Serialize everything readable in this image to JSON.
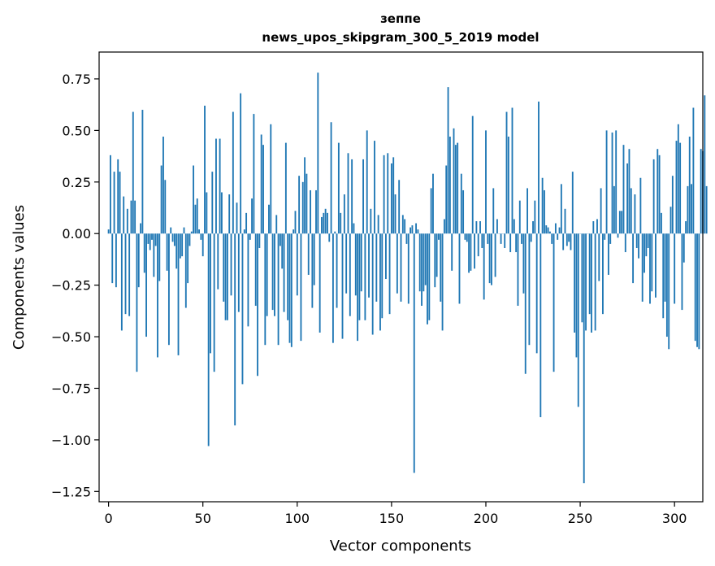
{
  "chart_data": {
    "type": "bar",
    "title_line1": "зеппе",
    "title_line2": "news_upos_skipgram_300_5_2019 model",
    "xlabel": "Vector components",
    "ylabel": "Components values",
    "xlim": [
      -5,
      315
    ],
    "ylim": [
      -1.3,
      0.88
    ],
    "x_ticks": [
      0,
      50,
      100,
      150,
      200,
      250,
      300
    ],
    "x_tick_labels": [
      "0",
      "50",
      "100",
      "150",
      "200",
      "250",
      "300"
    ],
    "y_ticks": [
      0.75,
      0.5,
      0.25,
      0.0,
      -0.25,
      -0.5,
      -0.75,
      -1.0,
      -1.25
    ],
    "y_tick_labels": [
      "0.75",
      "0.50",
      "0.25",
      "0.00",
      "−0.25",
      "−0.50",
      "−0.75",
      "−1.00",
      "−1.25"
    ],
    "bar_color": "#1f77b4",
    "values": [
      0.02,
      0.38,
      -0.24,
      0.3,
      -0.26,
      0.36,
      0.3,
      -0.47,
      0.18,
      -0.39,
      0.12,
      -0.4,
      0.16,
      0.59,
      0.16,
      -0.67,
      -0.26,
      0.05,
      0.6,
      -0.19,
      -0.5,
      -0.05,
      -0.08,
      -0.03,
      -0.21,
      -0.06,
      -0.6,
      -0.23,
      0.33,
      0.47,
      0.26,
      -0.18,
      -0.54,
      0.03,
      -0.04,
      -0.06,
      -0.17,
      -0.59,
      -0.12,
      -0.11,
      0.03,
      -0.36,
      -0.24,
      -0.06,
      0.01,
      0.33,
      0.14,
      0.17,
      0.02,
      -0.03,
      -0.11,
      0.62,
      0.2,
      -1.03,
      -0.58,
      0.3,
      -0.67,
      0.46,
      -0.27,
      0.46,
      0.2,
      -0.33,
      -0.42,
      -0.42,
      0.19,
      -0.3,
      0.59,
      -0.93,
      0.15,
      -0.38,
      0.68,
      -0.73,
      0.02,
      0.1,
      -0.45,
      -0.03,
      0.17,
      0.58,
      -0.35,
      -0.69,
      -0.07,
      0.48,
      0.43,
      -0.54,
      -0.4,
      0.14,
      0.53,
      -0.37,
      -0.4,
      0.09,
      -0.54,
      -0.06,
      -0.17,
      -0.38,
      0.44,
      -0.42,
      -0.53,
      -0.55,
      0.02,
      0.11,
      -0.3,
      0.28,
      -0.52,
      0.25,
      0.37,
      0.29,
      -0.2,
      0.21,
      -0.36,
      -0.25,
      0.21,
      0.78,
      -0.48,
      0.08,
      0.1,
      0.12,
      0.1,
      -0.04,
      0.54,
      -0.53,
      0.01,
      -0.36,
      0.44,
      0.1,
      -0.51,
      0.19,
      -0.29,
      0.39,
      -0.4,
      0.36,
      0.05,
      -0.3,
      -0.52,
      -0.42,
      -0.28,
      0.36,
      -0.42,
      0.5,
      -0.31,
      0.12,
      -0.49,
      0.45,
      -0.33,
      0.09,
      -0.47,
      -0.41,
      0.38,
      -0.22,
      0.39,
      -0.39,
      0.34,
      0.37,
      0.19,
      -0.29,
      0.26,
      -0.33,
      0.09,
      0.07,
      -0.05,
      -0.34,
      0.03,
      0.04,
      -1.16,
      0.05,
      0.02,
      -0.28,
      -0.35,
      -0.28,
      -0.25,
      -0.44,
      -0.42,
      0.22,
      0.29,
      -0.26,
      -0.21,
      -0.03,
      -0.33,
      -0.47,
      0.07,
      0.33,
      0.71,
      0.47,
      -0.18,
      0.51,
      0.43,
      0.44,
      -0.34,
      0.29,
      0.21,
      -0.03,
      -0.04,
      -0.19,
      -0.18,
      0.57,
      -0.17,
      0.06,
      -0.11,
      0.06,
      -0.07,
      -0.32,
      0.5,
      -0.05,
      -0.24,
      -0.25,
      0.22,
      -0.21,
      0.07,
      0.0,
      -0.05,
      0.0,
      -0.07,
      0.59,
      0.47,
      -0.09,
      0.61,
      0.07,
      -0.09,
      -0.35,
      0.16,
      -0.05,
      -0.29,
      -0.68,
      0.22,
      -0.54,
      -0.04,
      0.06,
      0.16,
      -0.58,
      0.64,
      -0.89,
      0.27,
      0.21,
      0.04,
      0.03,
      0.01,
      -0.05,
      -0.67,
      0.05,
      -0.03,
      0.03,
      0.24,
      -0.08,
      0.12,
      -0.06,
      -0.04,
      -0.08,
      0.3,
      -0.48,
      -0.6,
      -0.84,
      0.0,
      -0.43,
      -1.21,
      -0.47,
      0.0,
      -0.39,
      -0.48,
      0.06,
      -0.47,
      0.07,
      -0.23,
      0.22,
      -0.39,
      -0.03,
      0.5,
      -0.2,
      -0.05,
      0.49,
      0.23,
      0.5,
      -0.02,
      0.11,
      0.11,
      0.43,
      -0.09,
      0.34,
      0.41,
      0.22,
      -0.24,
      0.19,
      -0.07,
      -0.12,
      0.27,
      -0.33,
      -0.19,
      -0.11,
      -0.07,
      -0.34,
      -0.28,
      0.36,
      -0.31,
      0.41,
      0.38,
      0.1,
      -0.41,
      -0.33,
      -0.5,
      -0.56,
      0.13,
      0.28,
      -0.34,
      0.45,
      0.53,
      0.44,
      -0.37,
      -0.14,
      0.06,
      0.23,
      0.47,
      0.24,
      0.61,
      -0.52,
      -0.55,
      -0.56,
      0.41,
      0.4,
      0.67,
      0.23
    ]
  }
}
